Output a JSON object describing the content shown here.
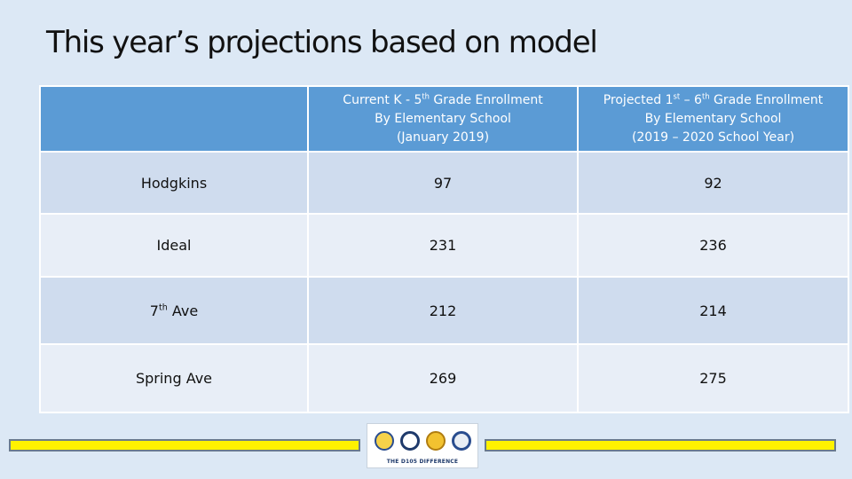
{
  "title": "This year’s projections based on model",
  "table": {
    "header": [
      {
        "lines": [
          [
            "",
            ""
          ],
          [
            "",
            ""
          ],
          [
            "",
            ""
          ]
        ]
      },
      {
        "lines": [
          [
            "Current K - 5",
            "th",
            " Grade Enrollment"
          ],
          [
            "By Elementary School",
            "",
            ""
          ],
          [
            "(January 2019)",
            "",
            ""
          ]
        ]
      },
      {
        "lines": [
          [
            "Projected 1",
            "st",
            " – 6"
          ],
          [
            "By Elementary School",
            "",
            ""
          ],
          [
            "(2019 – 2020 School Year)",
            "",
            ""
          ]
        ]
      }
    ],
    "header_right_tail": [
      "th",
      " Grade Enrollment"
    ],
    "rows": [
      {
        "school": "Hodgkins",
        "school_sup": "",
        "school_tail": "",
        "current": "97",
        "projected": "92"
      },
      {
        "school": "Ideal",
        "school_sup": "",
        "school_tail": "",
        "current": "231",
        "projected": "236"
      },
      {
        "school": "7",
        "school_sup": "th",
        "school_tail": " Ave",
        "current": "212",
        "projected": "214"
      },
      {
        "school": "Spring Ave",
        "school_sup": "",
        "school_tail": "",
        "current": "269",
        "projected": "275"
      }
    ]
  },
  "footer": {
    "logo_text": "THE D105 DIFFERENCE"
  },
  "colors": {
    "header_bg": "#5b9bd5",
    "row_dark": "#cfdcee",
    "row_light": "#e8eef7",
    "bar": "#fff200"
  }
}
